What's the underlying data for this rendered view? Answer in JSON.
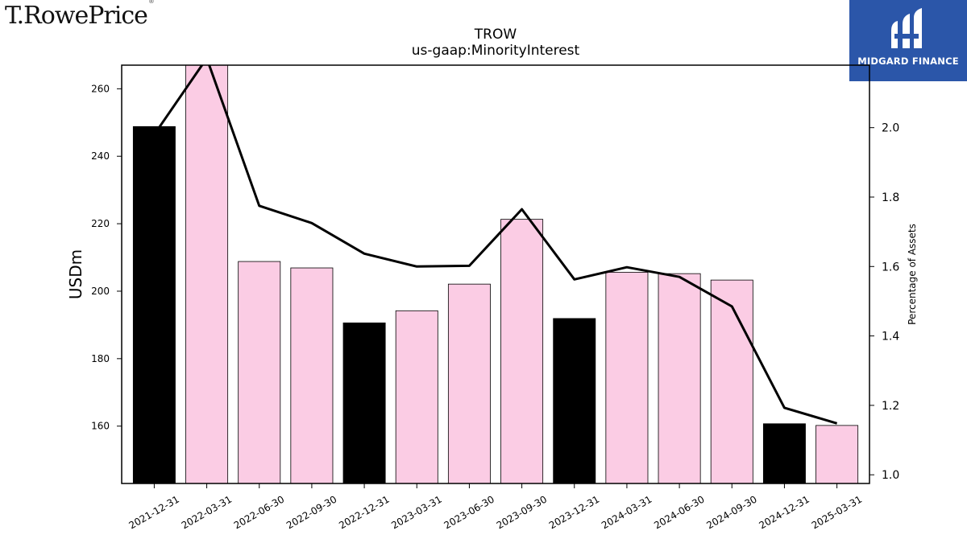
{
  "logos": {
    "left_text": "T.RowePrice",
    "left_mark": "®",
    "right_brand": "MIDGARD FINANCE"
  },
  "chart_data": {
    "type": "bar",
    "title": "TROW",
    "subtitle": "us-gaap:MinorityInterest",
    "ylabel": "USDm",
    "y2label": "Percentage of Assets",
    "ylim": [
      143,
      267
    ],
    "y2lim": [
      0.975,
      2.18
    ],
    "yticks": [
      160,
      180,
      200,
      220,
      240,
      260
    ],
    "y2ticks": [
      1.0,
      1.2,
      1.4,
      1.6,
      1.8,
      2.0
    ],
    "categories": [
      "2021-12-31",
      "2022-03-31",
      "2022-06-30",
      "2022-09-30",
      "2022-12-31",
      "2023-03-31",
      "2023-06-30",
      "2023-09-30",
      "2023-12-31",
      "2024-03-31",
      "2024-06-30",
      "2024-09-30",
      "2024-12-31",
      "2025-03-31"
    ],
    "series": [
      {
        "type": "bar",
        "axis": "left",
        "values": [
          248.8,
          267.0,
          208.8,
          206.9,
          190.6,
          194.2,
          202.1,
          221.3,
          191.9,
          205.6,
          205.2,
          203.3,
          160.7,
          160.2
        ],
        "colors": [
          "#000000",
          "#fbcce4",
          "#fbcce4",
          "#fbcce4",
          "#000000",
          "#fbcce4",
          "#fbcce4",
          "#fbcce4",
          "#000000",
          "#fbcce4",
          "#fbcce4",
          "#fbcce4",
          "#000000",
          "#fbcce4"
        ]
      },
      {
        "type": "line",
        "axis": "right",
        "color": "#000000",
        "values": [
          1.98,
          2.2,
          1.775,
          1.725,
          1.637,
          1.6,
          1.602,
          1.765,
          1.563,
          1.598,
          1.57,
          1.485,
          1.193,
          1.148
        ]
      }
    ],
    "legend": "none",
    "grid": false
  }
}
